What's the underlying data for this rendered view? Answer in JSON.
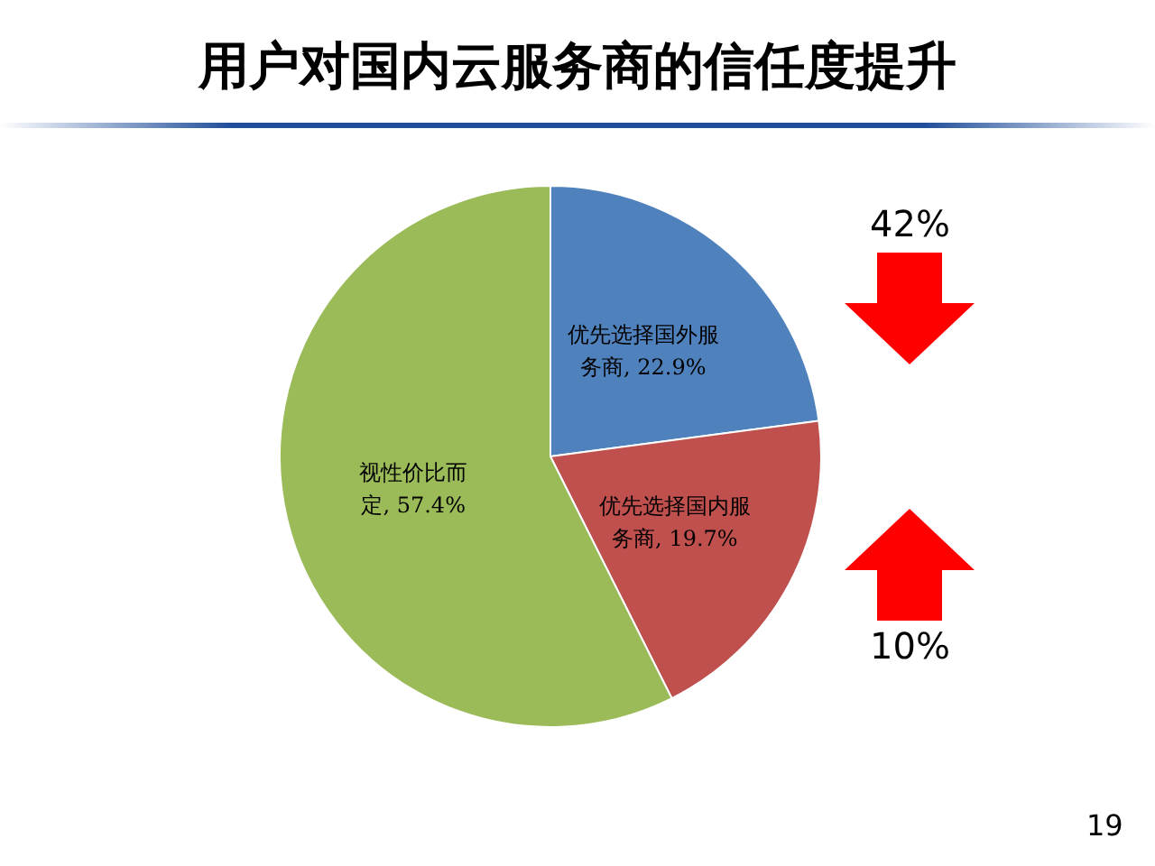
{
  "chart_data": {
    "type": "pie",
    "title": "用户对国内云服务商的信任度提升",
    "categories": [
      "优先选择国外服务商",
      "优先选择国内服务商",
      "视性价比而定"
    ],
    "values": [
      22.9,
      19.7,
      57.4
    ],
    "colors": [
      "#4f81bd",
      "#c0504d",
      "#9bbb59"
    ],
    "value_labels": [
      "22.9%",
      "19.7%",
      "57.4%"
    ],
    "legend": false,
    "annotations": [
      "42%",
      "10%",
      "19"
    ]
  }
}
